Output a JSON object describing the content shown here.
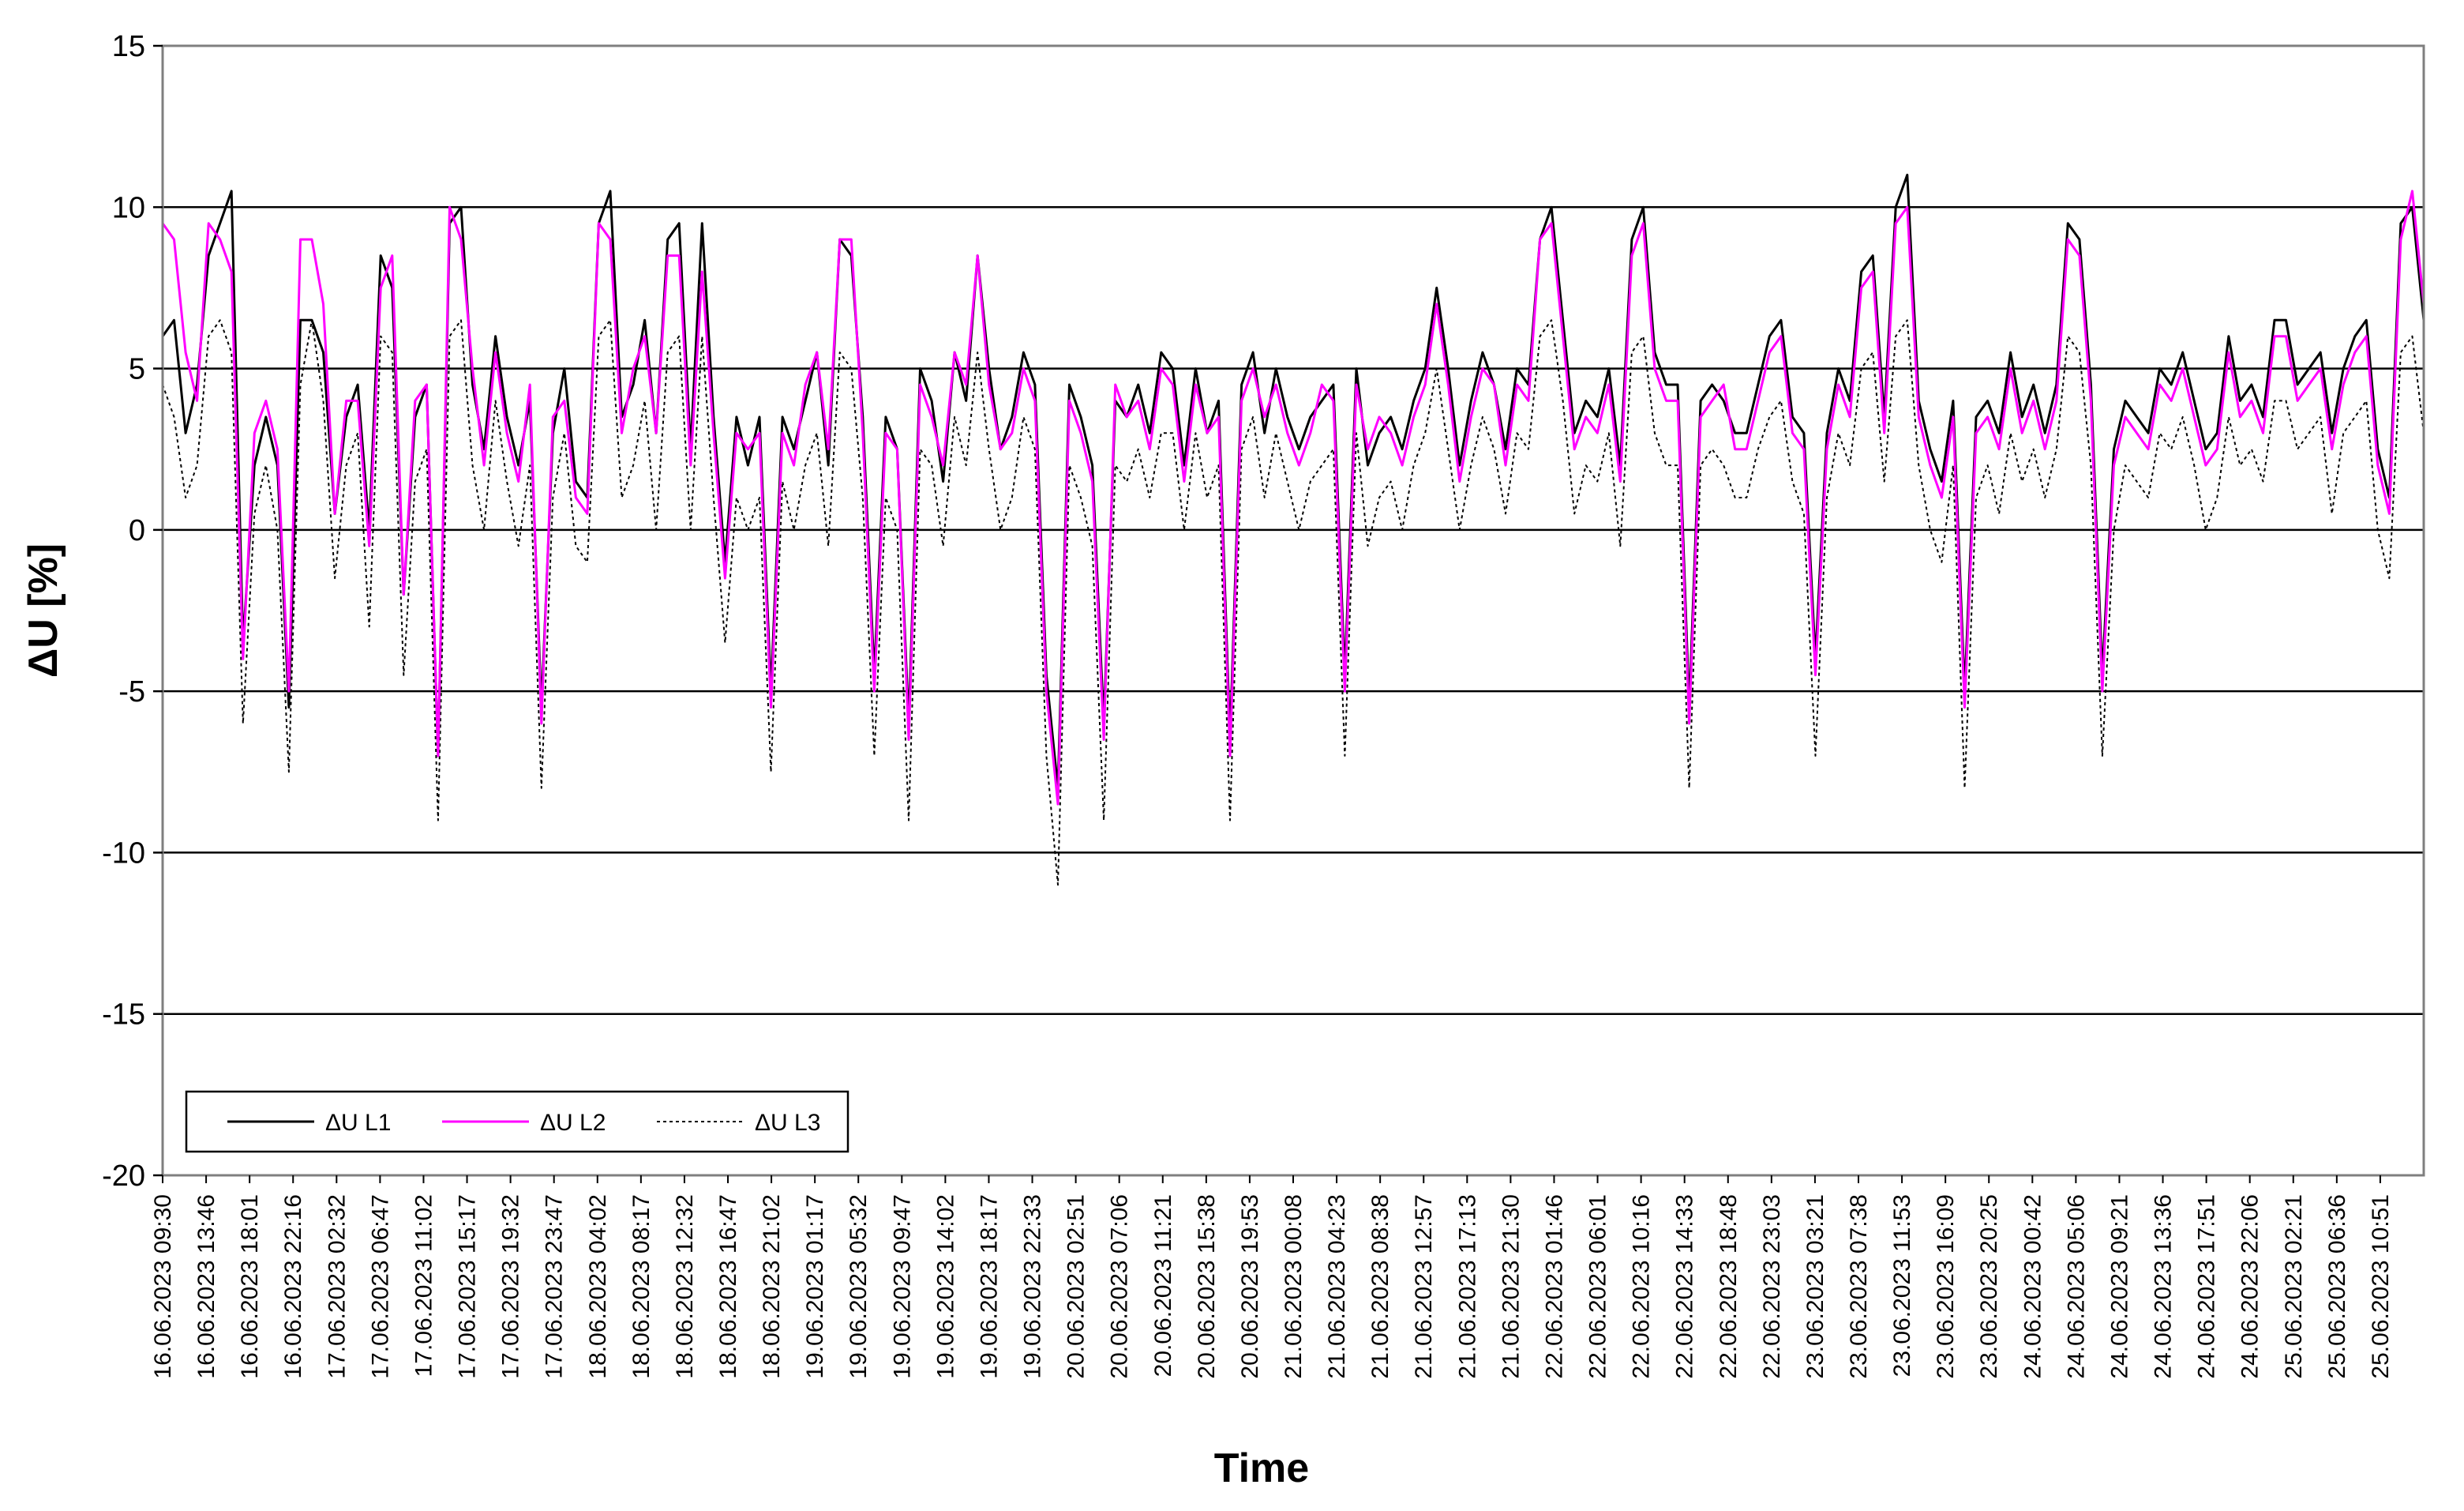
{
  "chart_data": {
    "type": "line",
    "title": "",
    "xlabel": "Time",
    "ylabel": "ΔU [%]",
    "ylim": [
      -20,
      15
    ],
    "yticks": [
      -20,
      -15,
      -10,
      -5,
      0,
      5,
      10,
      15
    ],
    "grid": "horizontal",
    "legend_placement": "bottom-left",
    "x_tick_labels": [
      "16.06.2023 09:30",
      "16.06.2023 13:46",
      "16.06.2023 18:01",
      "16.06.2023 22:16",
      "17.06.2023 02:32",
      "17.06.2023 06:47",
      "17.06.2023 11:02",
      "17.06.2023 15:17",
      "17.06.2023 19:32",
      "17.06.2023 23:47",
      "18.06.2023 04:02",
      "18.06.2023 08:17",
      "18.06.2023 12:32",
      "18.06.2023 16:47",
      "18.06.2023 21:02",
      "19.06.2023 01:17",
      "19.06.2023 05:32",
      "19.06.2023 09:47",
      "19.06.2023 14:02",
      "19.06.2023 18:17",
      "19.06.2023 22:33",
      "20.06.2023 02:51",
      "20.06.2023 07:06",
      "20.06.2023 11:21",
      "20.06.2023 15:38",
      "20.06.2023 19:53",
      "21.06.2023 00:08",
      "21.06.2023 04:23",
      "21.06.2023 08:38",
      "21.06.2023 12:57",
      "21.06.2023 17:13",
      "21.06.2023 21:30",
      "22.06.2023 01:46",
      "22.06.2023 06:01",
      "22.06.2023 10:16",
      "22.06.2023 14:33",
      "22.06.2023 18:48",
      "22.06.2023 23:03",
      "23.06.2023 03:21",
      "23.06.2023 07:38",
      "23.06.2023 11:53",
      "23.06.2023 16:09",
      "23.06.2023 20:25",
      "24.06.2023 00:42",
      "24.06.2023 05:06",
      "24.06.2023 09:21",
      "24.06.2023 13:36",
      "24.06.2023 17:51",
      "24.06.2023 22:06",
      "25.06.2023 02:21",
      "25.06.2023 06:36",
      "25.06.2023 10:51"
    ],
    "series": [
      {
        "name": "ΔU L1",
        "color": "#000000",
        "dash": "solid",
        "values": [
          6,
          6.5,
          3,
          4.5,
          8.5,
          9.5,
          10.5,
          -3.5,
          2,
          3.5,
          2,
          -5.5,
          6.5,
          6.5,
          5.5,
          0.5,
          3.5,
          4.5,
          0,
          8.5,
          7.5,
          -2,
          3.5,
          4.5,
          -7,
          9.5,
          10,
          4.5,
          2.5,
          6,
          3.5,
          2,
          4,
          -5.5,
          3,
          5,
          1.5,
          1,
          9.5,
          10.5,
          3.5,
          4.5,
          6.5,
          3,
          9,
          9.5,
          2.5,
          9.5,
          3.5,
          -1,
          3.5,
          2,
          3.5,
          -5,
          3.5,
          2.5,
          4,
          5.5,
          2,
          9,
          8.5,
          3.5,
          -4.5,
          3.5,
          2.5,
          -6,
          5,
          4,
          1.5,
          5.5,
          4,
          8.5,
          5,
          2.5,
          3.5,
          5.5,
          4.5,
          -4.5,
          -8,
          4.5,
          3.5,
          2,
          -6,
          4,
          3.5,
          4.5,
          3,
          5.5,
          5,
          2,
          5,
          3,
          4,
          -6.5,
          4.5,
          5.5,
          3,
          5,
          3.5,
          2.5,
          3.5,
          4,
          4.5,
          -4.5,
          5,
          2,
          3,
          3.5,
          2.5,
          4,
          5,
          7.5,
          5,
          2,
          4,
          5.5,
          4.5,
          2.5,
          5,
          4.5,
          9,
          10,
          6.5,
          3,
          4,
          3.5,
          5,
          2,
          9,
          10,
          5.5,
          4.5,
          4.5,
          -5.5,
          4,
          4.5,
          4,
          3,
          3,
          4.5,
          6,
          6.5,
          3.5,
          3,
          -4,
          3,
          5,
          4,
          8,
          8.5,
          3.5,
          10,
          11,
          4,
          2.5,
          1.5,
          4,
          -5,
          3.5,
          4,
          3,
          5.5,
          3.5,
          4.5,
          3,
          4.5,
          9.5,
          9,
          4.5,
          -4.5,
          2.5,
          4,
          3.5,
          3,
          5,
          4.5,
          5.5,
          4,
          2.5,
          3,
          6,
          4,
          4.5,
          3.5,
          6.5,
          6.5,
          4.5,
          5,
          5.5,
          3,
          5,
          6,
          6.5,
          2.5,
          1,
          9.5,
          10,
          6.5
        ]
      },
      {
        "name": "ΔU L2",
        "color": "#ff00ff",
        "dash": "solid",
        "values": [
          9.5,
          9,
          5.5,
          4,
          9.5,
          9,
          8,
          -4,
          3,
          4,
          2.5,
          -5,
          9,
          9,
          7,
          0.5,
          4,
          4,
          -0.5,
          7.5,
          8.5,
          -2,
          4,
          4.5,
          -7,
          10,
          9,
          5,
          2,
          5.5,
          3,
          1.5,
          4.5,
          -6,
          3.5,
          4,
          1,
          0.5,
          9.5,
          9,
          3,
          5,
          6,
          3,
          8.5,
          8.5,
          2,
          8,
          3,
          -1.5,
          3,
          2.5,
          3,
          -5.5,
          3,
          2,
          4.5,
          5.5,
          2.5,
          9,
          9,
          3,
          -5,
          3,
          2.5,
          -6.5,
          4.5,
          3.5,
          2,
          5.5,
          4.5,
          8.5,
          4.5,
          2.5,
          3,
          5,
          4,
          -5,
          -8.5,
          4,
          3,
          1.5,
          -6.5,
          4.5,
          3.5,
          4,
          2.5,
          5,
          4.5,
          1.5,
          4.5,
          3,
          3.5,
          -7,
          4,
          5,
          3.5,
          4.5,
          3,
          2,
          3,
          4.5,
          4,
          -5,
          4.5,
          2.5,
          3.5,
          3,
          2,
          3.5,
          4.5,
          7,
          4.5,
          1.5,
          3.5,
          5,
          4.5,
          2,
          4.5,
          4,
          9,
          9.5,
          6,
          2.5,
          3.5,
          3,
          4.5,
          1.5,
          8.5,
          9.5,
          5,
          4,
          4,
          -6,
          3.5,
          4,
          4.5,
          2.5,
          2.5,
          4,
          5.5,
          6,
          3,
          2.5,
          -4.5,
          2.5,
          4.5,
          3.5,
          7.5,
          8,
          3,
          9.5,
          10,
          3.5,
          2,
          1,
          3.5,
          -5.5,
          3,
          3.5,
          2.5,
          5,
          3,
          4,
          2.5,
          4,
          9,
          8.5,
          4,
          -5,
          2,
          3.5,
          3,
          2.5,
          4.5,
          4,
          5,
          3.5,
          2,
          2.5,
          5.5,
          3.5,
          4,
          3,
          6,
          6,
          4,
          4.5,
          5,
          2.5,
          4.5,
          5.5,
          6,
          2,
          0.5,
          9,
          10.5,
          7
        ]
      },
      {
        "name": "ΔU L3",
        "color": "#000000",
        "dash": "dotted",
        "values": [
          4.5,
          3.5,
          1,
          2,
          6,
          6.5,
          5.5,
          -6,
          0.5,
          2,
          0,
          -7.5,
          4.5,
          6.5,
          4,
          -1.5,
          2,
          3,
          -3,
          6,
          5.5,
          -4.5,
          1.5,
          2.5,
          -9,
          6,
          6.5,
          2,
          0,
          4,
          1.5,
          -0.5,
          2,
          -8,
          1,
          3,
          -0.5,
          -1,
          6,
          6.5,
          1,
          2,
          4,
          0,
          5.5,
          6,
          0,
          6,
          1,
          -3.5,
          1,
          0,
          1,
          -7.5,
          1.5,
          0,
          2,
          3,
          -0.5,
          5.5,
          5,
          1,
          -7,
          1,
          0,
          -9,
          2.5,
          2,
          -0.5,
          3.5,
          2,
          5.5,
          2.5,
          0,
          1,
          3.5,
          2.5,
          -7,
          -11,
          2,
          1,
          -0.5,
          -9,
          2,
          1.5,
          2.5,
          1,
          3,
          3,
          0,
          3,
          1,
          2,
          -9,
          2.5,
          3.5,
          1,
          3,
          1.5,
          0,
          1.5,
          2,
          2.5,
          -7,
          3,
          -0.5,
          1,
          1.5,
          0,
          2,
          3,
          5,
          2.5,
          0,
          2,
          3.5,
          2.5,
          0.5,
          3,
          2.5,
          6,
          6.5,
          4,
          0.5,
          2,
          1.5,
          3,
          -0.5,
          5.5,
          6,
          3,
          2,
          2,
          -8,
          2,
          2.5,
          2,
          1,
          1,
          2.5,
          3.5,
          4,
          1.5,
          0.5,
          -7,
          1,
          3,
          2,
          5,
          5.5,
          1.5,
          6,
          6.5,
          2,
          0,
          -1,
          2,
          -8,
          1,
          2,
          0.5,
          3,
          1.5,
          2.5,
          1,
          2.5,
          6,
          5.5,
          2,
          -7,
          0,
          2,
          1.5,
          1,
          3,
          2.5,
          3.5,
          2,
          0,
          1,
          3.5,
          2,
          2.5,
          1.5,
          4,
          4,
          2.5,
          3,
          3.5,
          0.5,
          3,
          3.5,
          4,
          0,
          -1.5,
          5.5,
          6,
          3
        ]
      }
    ]
  }
}
